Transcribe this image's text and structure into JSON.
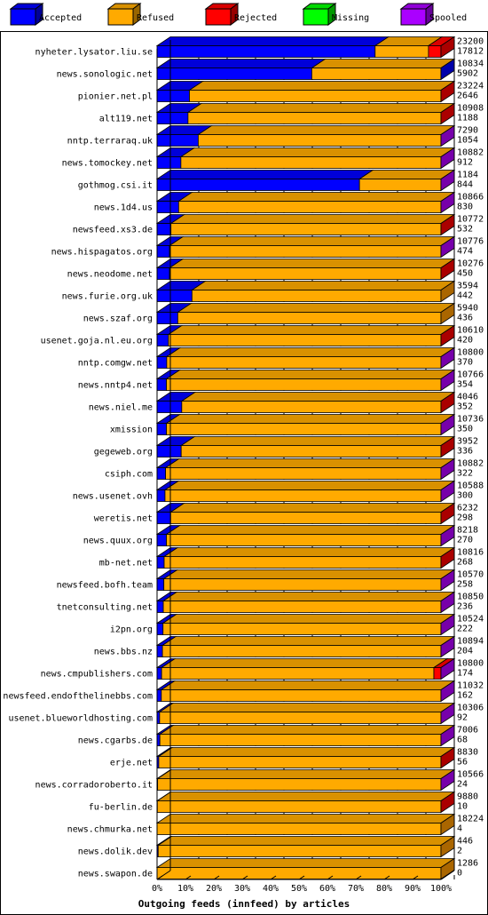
{
  "chart_data": {
    "type": "bar",
    "stacked": true,
    "orientation": "horizontal",
    "title": "Outgoing feeds (innfeed) by articles",
    "xlabel": "",
    "ylabel": "",
    "xlim": [
      0,
      100
    ],
    "x_ticks": [
      "0%",
      "10%",
      "20%",
      "30%",
      "40%",
      "50%",
      "60%",
      "70%",
      "80%",
      "90%",
      "100%"
    ],
    "grid": "vertical dashed",
    "legend_position": "top",
    "series": [
      {
        "name": "Accepted",
        "color": "#0000ff"
      },
      {
        "name": "Refused",
        "color": "#ffaa00"
      },
      {
        "name": "Rejected",
        "color": "#ff0000"
      },
      {
        "name": "Missing",
        "color": "#00ff00"
      },
      {
        "name": "Spooled",
        "color": "#aa00ff"
      }
    ],
    "rows": [
      {
        "host": "nyheter.lysator.liu.se",
        "offered": "23200",
        "accepted": "17812",
        "pct": [
          76.8,
          18.8,
          4.4,
          0,
          0
        ]
      },
      {
        "host": "news.sonologic.net",
        "offered": "10834",
        "accepted": "5902",
        "pct": [
          54.5,
          45.5,
          0,
          0,
          0
        ]
      },
      {
        "host": "pionier.net.pl",
        "offered": "23224",
        "accepted": "2646",
        "pct": [
          11.4,
          88.6,
          0,
          0,
          0
        ]
      },
      {
        "host": "alt119.net",
        "offered": "10908",
        "accepted": "1188",
        "pct": [
          10.9,
          89.1,
          0,
          0,
          0
        ]
      },
      {
        "host": "nntp.terraraq.uk",
        "offered": "7290",
        "accepted": "1054",
        "pct": [
          14.5,
          85.5,
          0,
          0,
          0
        ]
      },
      {
        "host": "news.tomockey.net",
        "offered": "10882",
        "accepted": "912",
        "pct": [
          8.4,
          91.6,
          0,
          0,
          0
        ]
      },
      {
        "host": "gothmog.csi.it",
        "offered": "1184",
        "accepted": "844",
        "pct": [
          71.3,
          28.7,
          0,
          0,
          0
        ]
      },
      {
        "host": "news.1d4.us",
        "offered": "10866",
        "accepted": "830",
        "pct": [
          7.6,
          92.4,
          0,
          0,
          0
        ]
      },
      {
        "host": "newsfeed.xs3.de",
        "offered": "10772",
        "accepted": "532",
        "pct": [
          4.9,
          95.1,
          0,
          0,
          0
        ]
      },
      {
        "host": "news.hispagatos.org",
        "offered": "10776",
        "accepted": "474",
        "pct": [
          4.4,
          95.6,
          0,
          0,
          0
        ]
      },
      {
        "host": "news.neodome.net",
        "offered": "10276",
        "accepted": "450",
        "pct": [
          4.4,
          95.6,
          0,
          0,
          0
        ]
      },
      {
        "host": "news.furie.org.uk",
        "offered": "3594",
        "accepted": "442",
        "pct": [
          12.3,
          87.7,
          0,
          0,
          0
        ]
      },
      {
        "host": "news.szaf.org",
        "offered": "5940",
        "accepted": "436",
        "pct": [
          7.3,
          92.7,
          0,
          0,
          0
        ]
      },
      {
        "host": "usenet.goja.nl.eu.org",
        "offered": "10610",
        "accepted": "420",
        "pct": [
          4.0,
          96.0,
          0,
          0,
          0
        ]
      },
      {
        "host": "nntp.comgw.net",
        "offered": "10800",
        "accepted": "370",
        "pct": [
          3.4,
          96.6,
          0,
          0,
          0
        ]
      },
      {
        "host": "news.nntp4.net",
        "offered": "10766",
        "accepted": "354",
        "pct": [
          3.3,
          96.7,
          0,
          0,
          0
        ]
      },
      {
        "host": "news.niel.me",
        "offered": "4046",
        "accepted": "352",
        "pct": [
          8.7,
          91.3,
          0,
          0,
          0
        ]
      },
      {
        "host": "xmission",
        "offered": "10736",
        "accepted": "350",
        "pct": [
          3.3,
          96.7,
          0,
          0,
          0
        ]
      },
      {
        "host": "gegeweb.org",
        "offered": "3952",
        "accepted": "336",
        "pct": [
          8.5,
          91.5,
          0,
          0,
          0
        ]
      },
      {
        "host": "csiph.com",
        "offered": "10882",
        "accepted": "322",
        "pct": [
          3.0,
          97.0,
          0,
          0,
          0
        ]
      },
      {
        "host": "news.usenet.ovh",
        "offered": "10588",
        "accepted": "300",
        "pct": [
          2.8,
          97.2,
          0,
          0,
          0
        ]
      },
      {
        "host": "weretis.net",
        "offered": "6232",
        "accepted": "298",
        "pct": [
          4.8,
          95.2,
          0,
          0,
          0
        ]
      },
      {
        "host": "news.quux.org",
        "offered": "8218",
        "accepted": "270",
        "pct": [
          3.3,
          96.7,
          0,
          0,
          0
        ]
      },
      {
        "host": "mb-net.net",
        "offered": "10816",
        "accepted": "268",
        "pct": [
          2.5,
          97.5,
          0,
          0,
          0
        ]
      },
      {
        "host": "newsfeed.bofh.team",
        "offered": "10570",
        "accepted": "258",
        "pct": [
          2.4,
          97.6,
          0,
          0,
          0
        ]
      },
      {
        "host": "tnetconsulting.net",
        "offered": "10850",
        "accepted": "236",
        "pct": [
          2.2,
          97.8,
          0,
          0,
          0
        ]
      },
      {
        "host": "i2pn.org",
        "offered": "10524",
        "accepted": "222",
        "pct": [
          2.1,
          97.9,
          0,
          0,
          0
        ]
      },
      {
        "host": "news.bbs.nz",
        "offered": "10894",
        "accepted": "204",
        "pct": [
          1.9,
          98.1,
          0,
          0,
          0
        ]
      },
      {
        "host": "news.cmpublishers.com",
        "offered": "10800",
        "accepted": "174",
        "pct": [
          1.6,
          95.9,
          2.5,
          0,
          0
        ]
      },
      {
        "host": "newsfeed.endofthelinebbs.com",
        "offered": "11032",
        "accepted": "162",
        "pct": [
          1.5,
          98.5,
          0,
          0,
          0
        ]
      },
      {
        "host": "usenet.blueworldhosting.com",
        "offered": "10306",
        "accepted": "92",
        "pct": [
          0.9,
          99.1,
          0,
          0,
          0
        ]
      },
      {
        "host": "news.cgarbs.de",
        "offered": "7006",
        "accepted": "68",
        "pct": [
          1.0,
          99.0,
          0,
          0,
          0
        ]
      },
      {
        "host": "erje.net",
        "offered": "8830",
        "accepted": "56",
        "pct": [
          0.6,
          99.4,
          0,
          0,
          0
        ]
      },
      {
        "host": "news.corradoroberto.it",
        "offered": "10566",
        "accepted": "24",
        "pct": [
          0.2,
          99.8,
          0,
          0,
          0
        ]
      },
      {
        "host": "fu-berlin.de",
        "offered": "9880",
        "accepted": "10",
        "pct": [
          0.1,
          99.9,
          0,
          0,
          0
        ]
      },
      {
        "host": "news.chmurka.net",
        "offered": "18224",
        "accepted": "4",
        "pct": [
          0.0,
          100,
          0,
          0,
          0
        ]
      },
      {
        "host": "news.dolik.dev",
        "offered": "446",
        "accepted": "2",
        "pct": [
          0.4,
          99.6,
          0,
          0,
          0
        ]
      },
      {
        "host": "news.swapon.de",
        "offered": "1286",
        "accepted": "0",
        "pct": [
          0,
          100,
          0,
          0,
          0
        ]
      }
    ],
    "bar_end_colors": [
      "#aa0000",
      "#0000aa",
      "#aa0000",
      "#aa0000",
      "#7700aa",
      "#7700aa",
      "#7700aa",
      "#7700aa",
      "#aa0000",
      "#7700aa",
      "#aa0000",
      "#aa6600",
      "#aa6600",
      "#aa0000",
      "#7700aa",
      "#7700aa",
      "#aa0000",
      "#7700aa",
      "#aa0000",
      "#7700aa",
      "#7700aa",
      "#aa0000",
      "#7700aa",
      "#aa0000",
      "#7700aa",
      "#7700aa",
      "#7700aa",
      "#7700aa",
      "#7700aa",
      "#7700aa",
      "#7700aa",
      "#7700aa",
      "#aa0000",
      "#7700aa",
      "#aa0000",
      "#aa6600",
      "#aa6600",
      "#aa6600"
    ]
  }
}
